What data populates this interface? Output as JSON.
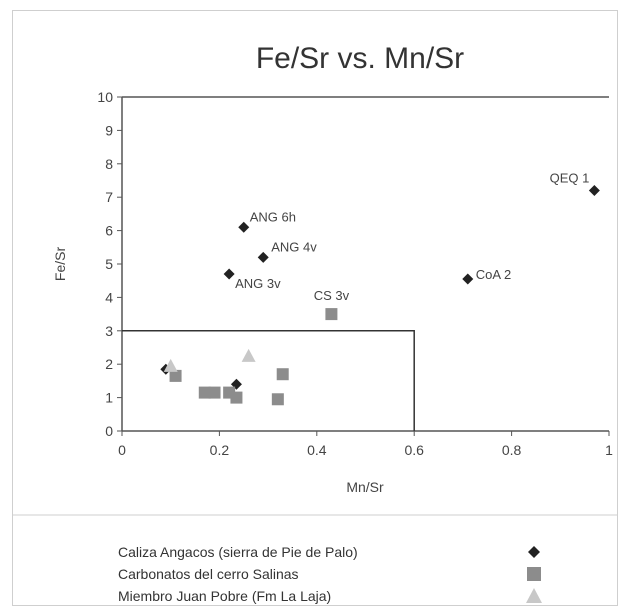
{
  "chart_data": {
    "type": "scatter",
    "title": "Fe/Sr vs. Mn/Sr",
    "xlabel": "Mn/Sr",
    "ylabel": "Fe/Sr",
    "xlim": [
      0,
      1
    ],
    "ylim": [
      0,
      10
    ],
    "x_ticks": [
      "0",
      "0.2",
      "0.4",
      "0.6",
      "0.8",
      "1"
    ],
    "y_ticks": [
      "0",
      "1",
      "2",
      "3",
      "4",
      "5",
      "6",
      "7",
      "8",
      "9",
      "10"
    ],
    "grid": false,
    "legend_position": "bottom",
    "threshold_box": {
      "x_max": 0.6,
      "y_max": 3
    },
    "series": [
      {
        "name": "Caliza Angacos (sierra de Pie de Palo)",
        "marker": "diamond",
        "color": "#222222",
        "points": [
          {
            "x": 0.25,
            "y": 6.1
          },
          {
            "x": 0.29,
            "y": 5.2
          },
          {
            "x": 0.22,
            "y": 4.7
          },
          {
            "x": 0.71,
            "y": 4.55
          },
          {
            "x": 0.97,
            "y": 7.2
          },
          {
            "x": 0.09,
            "y": 1.85
          },
          {
            "x": 0.235,
            "y": 1.4
          }
        ]
      },
      {
        "name": "Carbonatos del cerro Salinas",
        "marker": "square",
        "color": "#8c8c8c",
        "points": [
          {
            "x": 0.43,
            "y": 3.5
          },
          {
            "x": 0.11,
            "y": 1.65
          },
          {
            "x": 0.17,
            "y": 1.15
          },
          {
            "x": 0.19,
            "y": 1.15
          },
          {
            "x": 0.22,
            "y": 1.15
          },
          {
            "x": 0.235,
            "y": 1.0
          },
          {
            "x": 0.32,
            "y": 0.95
          },
          {
            "x": 0.33,
            "y": 1.7
          }
        ]
      },
      {
        "name": "Miembro Juan Pobre (Fm La Laja)",
        "marker": "triangle",
        "color": "#c8c8c8",
        "points": [
          {
            "x": 0.1,
            "y": 1.95
          },
          {
            "x": 0.26,
            "y": 2.25
          }
        ]
      }
    ],
    "annotations": [
      {
        "text": "ANG 6h",
        "x": 0.25,
        "y": 6.1
      },
      {
        "text": "ANG 4v",
        "x": 0.29,
        "y": 5.2
      },
      {
        "text": "ANG 3v",
        "x": 0.22,
        "y": 4.7
      },
      {
        "text": "CoA 2",
        "x": 0.71,
        "y": 4.55
      },
      {
        "text": "QEQ 1",
        "x": 0.97,
        "y": 7.2
      },
      {
        "text": "CS 3v",
        "x": 0.43,
        "y": 3.5
      }
    ]
  }
}
